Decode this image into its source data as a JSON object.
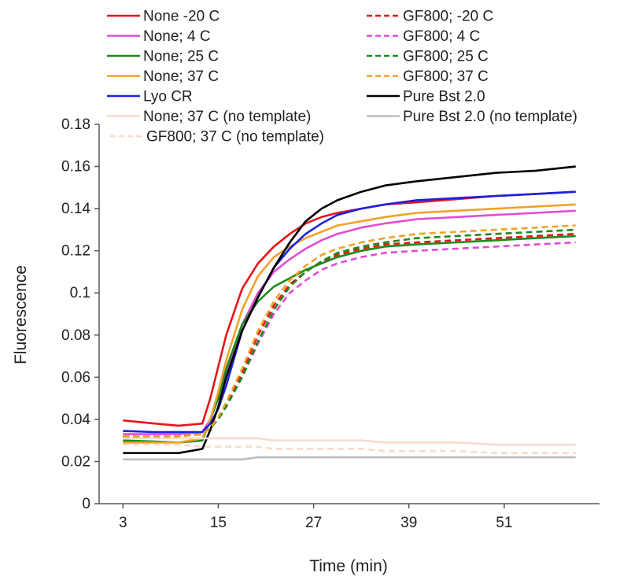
{
  "chart_data": {
    "type": "line",
    "title": "",
    "xlabel": "Time (min)",
    "ylabel": "Fluorescence",
    "xlim": [
      0,
      63
    ],
    "ylim": [
      0,
      0.18
    ],
    "x_ticks": [
      3,
      15,
      27,
      39,
      51
    ],
    "x_tick_labels": [
      "3",
      "15",
      "27",
      "39",
      "51"
    ],
    "y_ticks": [
      0,
      0.02,
      0.04,
      0.06,
      0.08,
      0.1,
      0.12,
      0.14,
      0.16,
      0.18
    ],
    "y_tick_labels": [
      "0",
      "0.02",
      "0.04",
      "0.06",
      "0.08",
      "0.1",
      "0.12",
      "0.14",
      "0.16",
      "0.18"
    ],
    "grid": false,
    "legend_position": "top",
    "x": [
      3,
      7,
      10,
      13,
      14,
      15,
      16,
      18,
      20,
      22,
      24,
      26,
      28,
      30,
      33,
      36,
      40,
      45,
      50,
      55,
      60
    ],
    "series": [
      {
        "name": "None -20 C",
        "color": "#e8141b",
        "dash": "solid",
        "values": [
          0.0395,
          0.038,
          0.037,
          0.038,
          0.05,
          0.065,
          0.08,
          0.102,
          0.114,
          0.122,
          0.128,
          0.133,
          0.136,
          0.138,
          0.14,
          0.142,
          0.143,
          0.1445,
          0.146,
          0.147,
          0.148
        ]
      },
      {
        "name": "None; 4 C",
        "color": "#e24bd6",
        "dash": "solid",
        "values": [
          0.033,
          0.033,
          0.033,
          0.034,
          0.04,
          0.05,
          0.063,
          0.085,
          0.1,
          0.11,
          0.116,
          0.121,
          0.125,
          0.128,
          0.131,
          0.133,
          0.135,
          0.136,
          0.137,
          0.138,
          0.139
        ]
      },
      {
        "name": "None; 25 C",
        "color": "#1c8a1c",
        "dash": "solid",
        "values": [
          0.03,
          0.0295,
          0.029,
          0.03,
          0.04,
          0.05,
          0.064,
          0.085,
          0.096,
          0.103,
          0.107,
          0.111,
          0.114,
          0.117,
          0.12,
          0.122,
          0.123,
          0.124,
          0.125,
          0.126,
          0.127
        ]
      },
      {
        "name": "None; 37 C",
        "color": "#f2a12a",
        "dash": "solid",
        "values": [
          0.029,
          0.029,
          0.029,
          0.031,
          0.04,
          0.053,
          0.068,
          0.092,
          0.108,
          0.117,
          0.122,
          0.126,
          0.129,
          0.132,
          0.134,
          0.136,
          0.138,
          0.139,
          0.14,
          0.141,
          0.142
        ]
      },
      {
        "name": "Lyo CR",
        "color": "#1a22e0",
        "dash": "solid",
        "values": [
          0.0345,
          0.034,
          0.034,
          0.034,
          0.038,
          0.045,
          0.056,
          0.082,
          0.098,
          0.112,
          0.121,
          0.128,
          0.133,
          0.137,
          0.14,
          0.142,
          0.144,
          0.145,
          0.146,
          0.147,
          0.148
        ]
      },
      {
        "name": "Pure Bst 2.0",
        "color": "#000000",
        "dash": "solid",
        "values": [
          0.024,
          0.024,
          0.024,
          0.026,
          0.035,
          0.046,
          0.06,
          0.082,
          0.098,
          0.112,
          0.124,
          0.134,
          0.14,
          0.144,
          0.148,
          0.151,
          0.153,
          0.155,
          0.157,
          0.158,
          0.16
        ]
      },
      {
        "name": "None; 37 C (no template)",
        "color": "#f6dccc",
        "dash": "solid",
        "values": [
          0.031,
          0.031,
          0.031,
          0.031,
          0.031,
          0.031,
          0.031,
          0.031,
          0.031,
          0.03,
          0.03,
          0.03,
          0.03,
          0.03,
          0.03,
          0.029,
          0.029,
          0.029,
          0.028,
          0.028,
          0.028
        ]
      },
      {
        "name": "Pure Bst 2.0 (no template)",
        "color": "#bdbdbd",
        "dash": "solid",
        "values": [
          0.021,
          0.021,
          0.021,
          0.021,
          0.021,
          0.021,
          0.021,
          0.021,
          0.022,
          0.022,
          0.022,
          0.022,
          0.022,
          0.022,
          0.022,
          0.022,
          0.022,
          0.022,
          0.022,
          0.022,
          0.022
        ]
      },
      {
        "name": "GF800; -20 C",
        "color": "#e8141b",
        "dash": "dashed",
        "values": [
          0.032,
          0.032,
          0.032,
          0.033,
          0.036,
          0.04,
          0.047,
          0.062,
          0.08,
          0.094,
          0.104,
          0.11,
          0.115,
          0.118,
          0.121,
          0.123,
          0.124,
          0.125,
          0.126,
          0.127,
          0.128
        ]
      },
      {
        "name": "GF800; 4 C",
        "color": "#e24bd6",
        "dash": "dashed",
        "values": [
          0.032,
          0.032,
          0.032,
          0.033,
          0.036,
          0.04,
          0.046,
          0.06,
          0.076,
          0.09,
          0.1,
          0.106,
          0.111,
          0.114,
          0.117,
          0.119,
          0.12,
          0.121,
          0.122,
          0.123,
          0.124
        ]
      },
      {
        "name": "GF800; 25 C",
        "color": "#1c8a1c",
        "dash": "dashed",
        "values": [
          0.032,
          0.032,
          0.032,
          0.033,
          0.036,
          0.04,
          0.046,
          0.06,
          0.077,
          0.092,
          0.103,
          0.11,
          0.115,
          0.119,
          0.122,
          0.124,
          0.126,
          0.127,
          0.128,
          0.129,
          0.13
        ]
      },
      {
        "name": "GF800; 37 C",
        "color": "#f2a12a",
        "dash": "dashed",
        "values": [
          0.032,
          0.032,
          0.032,
          0.033,
          0.036,
          0.041,
          0.048,
          0.064,
          0.082,
          0.096,
          0.106,
          0.113,
          0.118,
          0.121,
          0.124,
          0.126,
          0.128,
          0.129,
          0.13,
          0.131,
          0.132
        ]
      },
      {
        "name": "GF800; 37 C (no template)",
        "color": "#f6dccc",
        "dash": "dashed",
        "values": [
          0.028,
          0.028,
          0.028,
          0.027,
          0.027,
          0.027,
          0.027,
          0.027,
          0.027,
          0.026,
          0.026,
          0.026,
          0.026,
          0.026,
          0.026,
          0.025,
          0.025,
          0.025,
          0.024,
          0.024,
          0.024
        ]
      }
    ],
    "legend": [
      {
        "name": "None -20 C",
        "color": "#e8141b",
        "dash": "solid"
      },
      {
        "name": "GF800; -20 C",
        "color": "#e8141b",
        "dash": "dashed"
      },
      {
        "name": "None; 4 C",
        "color": "#e24bd6",
        "dash": "solid"
      },
      {
        "name": "GF800; 4 C",
        "color": "#e24bd6",
        "dash": "dashed"
      },
      {
        "name": "None; 25 C",
        "color": "#1c8a1c",
        "dash": "solid"
      },
      {
        "name": "GF800; 25 C",
        "color": "#1c8a1c",
        "dash": "dashed"
      },
      {
        "name": "None; 37 C",
        "color": "#f2a12a",
        "dash": "solid"
      },
      {
        "name": "GF800; 37 C",
        "color": "#f2a12a",
        "dash": "dashed"
      },
      {
        "name": "Lyo CR",
        "color": "#1a22e0",
        "dash": "solid"
      },
      {
        "name": "Pure Bst 2.0",
        "color": "#000000",
        "dash": "solid"
      },
      {
        "name": "None; 37 C (no template)",
        "color": "#f6dccc",
        "dash": "solid"
      },
      {
        "name": "Pure Bst 2.0 (no template)",
        "color": "#bdbdbd",
        "dash": "solid"
      },
      {
        "name": "GF800; 37 C (no template)",
        "color": "#f6dccc",
        "dash": "dashed"
      }
    ]
  }
}
